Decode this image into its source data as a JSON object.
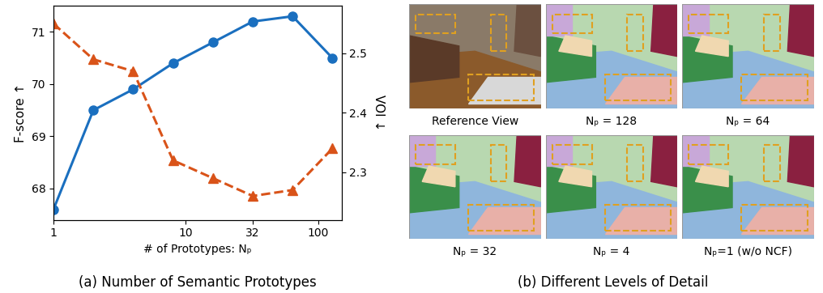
{
  "chart_data": {
    "type": "line",
    "caption": "(a) Number of Semantic Prototypes",
    "xlabel": "# of Prototypes: Nₚ",
    "x": [
      1,
      2,
      4,
      8,
      16,
      32,
      64,
      128
    ],
    "log": "x",
    "xlim": [
      1,
      150
    ],
    "xticks": [
      1,
      10,
      32,
      100
    ],
    "ylim": [
      67.4,
      71.5
    ],
    "yticks": [
      68,
      69,
      70,
      71
    ],
    "y2lim": [
      2.22,
      2.58
    ],
    "y2ticks": [
      2.3,
      2.4,
      2.5
    ],
    "series": [
      {
        "name": "F-score ↑",
        "color": "#1a6fbf",
        "marker": "o",
        "line_style": "solid",
        "values": [
          67.6,
          69.5,
          69.9,
          70.4,
          70.8,
          71.2,
          71.3,
          70.5
        ]
      },
      {
        "name": "VOI ↓",
        "color": "#d95319",
        "marker": "^",
        "line_style": "dashed",
        "axis": "y2",
        "values": [
          2.55,
          2.49,
          2.47,
          2.32,
          2.29,
          2.26,
          2.27,
          2.34
        ]
      }
    ]
  },
  "panel_b": {
    "caption": "(b) Different Levels of Detail",
    "images": [
      "Reference View",
      "Nₚ = 128",
      "Nₚ = 64",
      "Nₚ = 32",
      "Nₚ = 4",
      "Nₚ=1 (w/o NCF)"
    ]
  }
}
